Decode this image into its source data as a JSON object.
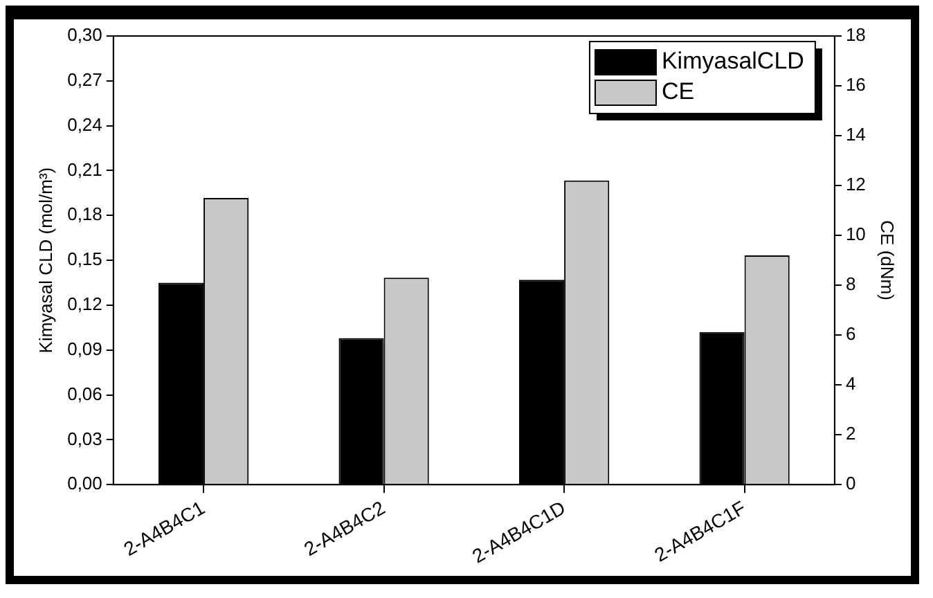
{
  "chart_data": {
    "type": "bar",
    "categories": [
      "2-A4B4C1",
      "2-A4B4C2",
      "2-A4B4C1D",
      "2-A4B4C1F"
    ],
    "ylabel": "Kimyasal CLD (mol/m³)",
    "y2label": "CE (dNm)",
    "series": [
      {
        "name": "KimyasalCLD",
        "color": "#000000",
        "values": [
          0.135,
          0.098,
          0.137,
          0.102
        ]
      },
      {
        "name": "CE",
        "color": "#c8c8c8",
        "axis": "y2",
        "values": [
          11.5,
          8.3,
          12.2,
          9.2
        ]
      }
    ],
    "ylim": [
      0,
      0.3
    ],
    "yticks": [
      {
        "value": 0,
        "label": "0,00"
      },
      {
        "value": 0.03,
        "label": "0,03"
      },
      {
        "value": 0.06,
        "label": "0,06"
      },
      {
        "value": 0.09,
        "label": "0,09"
      },
      {
        "value": 0.12,
        "label": "0,12"
      },
      {
        "value": 0.15,
        "label": "0,15"
      },
      {
        "value": 0.18,
        "label": "0,18"
      },
      {
        "value": 0.21,
        "label": "0,21"
      },
      {
        "value": 0.24,
        "label": "0,24"
      },
      {
        "value": 0.27,
        "label": "0,27"
      },
      {
        "value": 0.3,
        "label": "0,30"
      }
    ],
    "y2lim": [
      0,
      18
    ],
    "y2ticks": [
      0,
      2,
      4,
      6,
      8,
      10,
      12,
      14,
      16,
      18
    ],
    "legend": "top right",
    "grid": false
  }
}
